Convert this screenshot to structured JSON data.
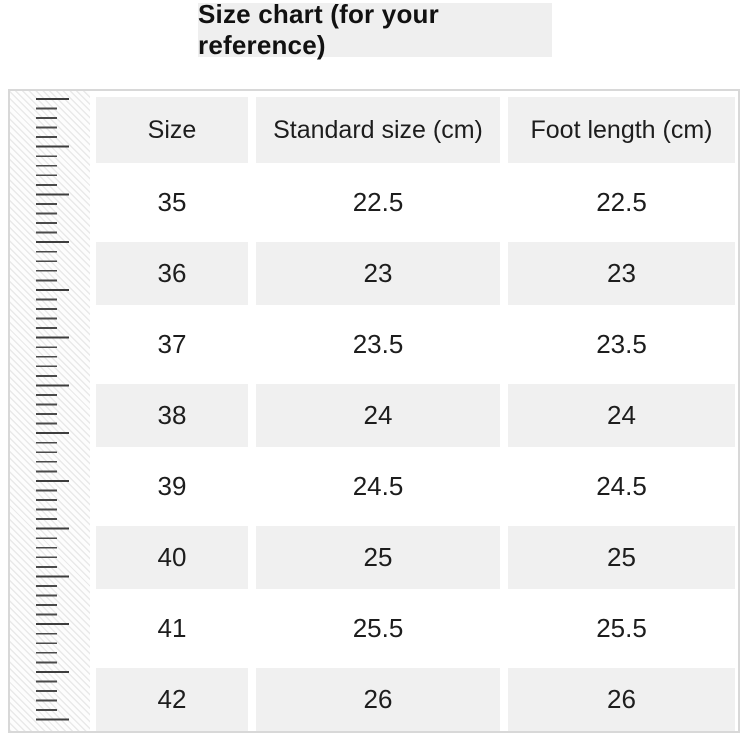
{
  "title": "Size chart (for your reference)",
  "table": {
    "columns": [
      "Size",
      "Standard size (cm)",
      "Foot length (cm)"
    ],
    "rows": [
      {
        "size": "35",
        "standard": "22.5",
        "foot": "22.5"
      },
      {
        "size": "36",
        "standard": "23",
        "foot": "23"
      },
      {
        "size": "37",
        "standard": "23.5",
        "foot": "23.5"
      },
      {
        "size": "38",
        "standard": "24",
        "foot": "24"
      },
      {
        "size": "39",
        "standard": "24.5",
        "foot": "24.5"
      },
      {
        "size": "40",
        "standard": "25",
        "foot": "25"
      },
      {
        "size": "41",
        "standard": "25.5",
        "foot": "25.5"
      },
      {
        "size": "42",
        "standard": "26",
        "foot": "26"
      }
    ]
  },
  "colors": {
    "title_bg": "#efefef",
    "row_gray": "#f0f0f0",
    "border": "#d8d8d8",
    "text": "#1d1d1d",
    "tick": "#4a4a4a"
  }
}
